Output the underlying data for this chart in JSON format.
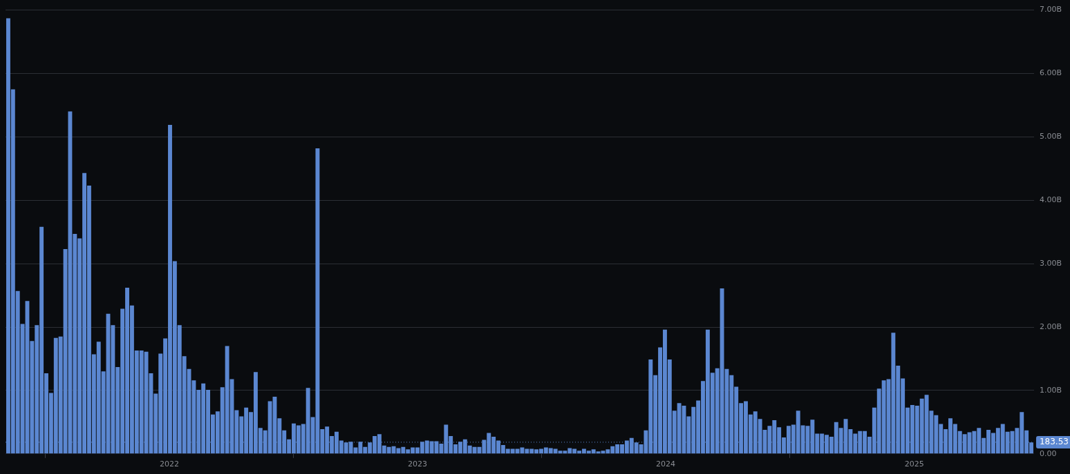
{
  "chart_data": {
    "type": "bar",
    "color": "#5b87d1",
    "x": [
      "2021-05-09",
      "2021-05-16",
      "2021-05-23",
      "2021-05-30",
      "2021-06-06",
      "2021-06-13",
      "2021-06-20",
      "2021-06-27",
      "2021-07-04",
      "2021-07-11",
      "2021-07-18",
      "2021-07-25",
      "2021-08-01",
      "2021-08-08",
      "2021-08-15",
      "2021-08-22",
      "2021-08-29",
      "2021-09-05",
      "2021-09-12",
      "2021-09-19",
      "2021-09-26",
      "2021-10-03",
      "2021-10-10",
      "2021-10-17",
      "2021-10-24",
      "2021-10-31",
      "2021-11-07",
      "2021-11-14",
      "2021-11-21",
      "2021-11-28",
      "2021-12-05",
      "2021-12-12",
      "2021-12-19",
      "2021-12-26",
      "2022-01-02",
      "2022-01-09",
      "2022-01-16",
      "2022-01-23",
      "2022-01-30",
      "2022-02-06",
      "2022-02-13",
      "2022-02-20",
      "2022-02-27",
      "2022-03-06",
      "2022-03-13",
      "2022-03-20",
      "2022-03-27",
      "2022-04-03",
      "2022-04-10",
      "2022-04-17",
      "2022-04-24",
      "2022-05-01",
      "2022-05-08",
      "2022-05-15",
      "2022-05-22",
      "2022-05-29",
      "2022-06-05",
      "2022-06-12",
      "2022-06-19",
      "2022-06-26",
      "2022-07-03",
      "2022-07-10",
      "2022-07-17",
      "2022-07-24",
      "2022-07-31",
      "2022-08-07",
      "2022-08-14",
      "2022-08-21",
      "2022-08-28",
      "2022-09-04",
      "2022-09-11",
      "2022-09-18",
      "2022-09-25",
      "2022-10-02",
      "2022-10-09",
      "2022-10-16",
      "2022-10-23",
      "2022-10-30",
      "2022-11-06",
      "2022-11-13",
      "2022-11-20",
      "2022-11-27",
      "2022-12-04",
      "2022-12-11",
      "2022-12-18",
      "2022-12-25",
      "2023-01-01",
      "2023-01-08",
      "2023-01-15",
      "2023-01-22",
      "2023-01-29",
      "2023-02-05",
      "2023-02-12",
      "2023-02-19",
      "2023-02-26",
      "2023-03-05",
      "2023-03-12",
      "2023-03-19",
      "2023-03-26",
      "2023-04-02",
      "2023-04-09",
      "2023-04-16",
      "2023-04-23",
      "2023-04-30",
      "2023-05-07",
      "2023-05-14",
      "2023-05-21",
      "2023-05-28",
      "2023-06-04",
      "2023-06-11",
      "2023-06-18",
      "2023-06-25",
      "2023-07-02",
      "2023-07-09",
      "2023-07-16",
      "2023-07-23",
      "2023-07-30",
      "2023-08-06",
      "2023-08-13",
      "2023-08-20",
      "2023-08-27",
      "2023-09-03",
      "2023-09-10",
      "2023-09-17",
      "2023-09-24",
      "2023-10-01",
      "2023-10-08",
      "2023-10-15",
      "2023-10-22",
      "2023-10-29",
      "2023-11-05",
      "2023-11-12",
      "2023-11-19",
      "2023-11-26",
      "2023-12-03",
      "2023-12-10",
      "2023-12-17",
      "2023-12-24",
      "2023-12-31",
      "2024-01-07",
      "2024-01-14",
      "2024-01-21",
      "2024-01-28",
      "2024-02-04",
      "2024-02-11",
      "2024-02-18",
      "2024-02-25",
      "2024-03-03",
      "2024-03-10",
      "2024-03-17",
      "2024-03-24",
      "2024-03-31",
      "2024-04-07",
      "2024-04-14",
      "2024-04-21",
      "2024-04-28",
      "2024-05-05",
      "2024-05-12",
      "2024-05-19",
      "2024-05-26",
      "2024-06-02",
      "2024-06-09",
      "2024-06-16",
      "2024-06-23",
      "2024-06-30",
      "2024-07-07",
      "2024-07-14",
      "2024-07-21",
      "2024-07-28",
      "2024-08-04",
      "2024-08-11",
      "2024-08-18",
      "2024-08-25",
      "2024-09-01",
      "2024-09-08",
      "2024-09-15",
      "2024-09-22",
      "2024-09-29",
      "2024-10-06",
      "2024-10-13",
      "2024-10-20",
      "2024-10-27",
      "2024-11-03",
      "2024-11-10",
      "2024-11-17",
      "2024-11-24",
      "2024-12-01",
      "2024-12-08",
      "2024-12-15",
      "2024-12-22",
      "2024-12-29",
      "2025-01-05",
      "2025-01-12",
      "2025-01-19",
      "2025-01-26",
      "2025-02-02",
      "2025-02-09",
      "2025-02-16",
      "2025-02-23",
      "2025-03-02",
      "2025-03-09",
      "2025-03-16",
      "2025-03-23",
      "2025-03-30",
      "2025-04-06",
      "2025-04-13",
      "2025-04-20",
      "2025-04-27",
      "2025-05-04",
      "2025-05-11",
      "2025-05-18",
      "2025-05-25",
      "2025-06-01",
      "2025-06-08",
      "2025-06-15",
      "2025-06-22"
    ],
    "values": [
      6.87,
      5.75,
      2.57,
      2.05,
      2.41,
      1.78,
      2.03,
      3.58,
      1.27,
      0.96,
      1.83,
      1.85,
      3.23,
      5.4,
      3.47,
      3.4,
      4.43,
      4.23,
      1.57,
      1.77,
      1.3,
      2.21,
      2.03,
      1.37,
      2.29,
      2.62,
      2.34,
      1.63,
      1.63,
      1.61,
      1.27,
      0.95,
      1.58,
      1.82,
      5.19,
      3.04,
      2.03,
      1.54,
      1.34,
      1.16,
      1.01,
      1.11,
      1.01,
      0.62,
      0.67,
      1.05,
      1.7,
      1.18,
      0.69,
      0.59,
      0.73,
      0.66,
      1.29,
      0.41,
      0.37,
      0.83,
      0.9,
      0.56,
      0.37,
      0.23,
      0.48,
      0.45,
      0.47,
      1.04,
      0.58,
      4.82,
      0.39,
      0.43,
      0.28,
      0.35,
      0.21,
      0.18,
      0.19,
      0.1,
      0.19,
      0.11,
      0.18,
      0.28,
      0.31,
      0.13,
      0.11,
      0.12,
      0.09,
      0.11,
      0.07,
      0.1,
      0.1,
      0.19,
      0.21,
      0.2,
      0.2,
      0.16,
      0.46,
      0.28,
      0.15,
      0.19,
      0.23,
      0.13,
      0.11,
      0.11,
      0.22,
      0.33,
      0.27,
      0.21,
      0.14,
      0.08,
      0.08,
      0.08,
      0.1,
      0.08,
      0.08,
      0.07,
      0.08,
      0.1,
      0.09,
      0.08,
      0.05,
      0.05,
      0.09,
      0.08,
      0.05,
      0.08,
      0.05,
      0.07,
      0.04,
      0.05,
      0.07,
      0.12,
      0.15,
      0.15,
      0.21,
      0.25,
      0.18,
      0.15,
      0.37,
      1.49,
      1.24,
      1.68,
      1.96,
      1.49,
      0.68,
      0.8,
      0.76,
      0.59,
      0.74,
      0.84,
      1.15,
      1.96,
      1.28,
      1.35,
      2.61,
      1.34,
      1.24,
      1.06,
      0.8,
      0.83,
      0.62,
      0.67,
      0.55,
      0.38,
      0.44,
      0.53,
      0.42,
      0.26,
      0.44,
      0.46,
      0.68,
      0.45,
      0.44,
      0.54,
      0.32,
      0.32,
      0.3,
      0.27,
      0.5,
      0.41,
      0.55,
      0.39,
      0.32,
      0.36,
      0.36,
      0.27,
      0.73,
      1.03,
      1.16,
      1.18,
      1.91,
      1.39,
      1.19,
      0.73,
      0.77,
      0.76,
      0.87,
      0.93,
      0.68,
      0.61,
      0.47,
      0.39,
      0.56,
      0.47,
      0.36,
      0.31,
      0.34,
      0.36,
      0.41,
      0.25,
      0.38,
      0.33,
      0.41,
      0.47,
      0.35,
      0.36,
      0.41,
      0.66,
      0.37,
      0.18
    ],
    "xlim": [
      "2021-05-05",
      "2025-06-26"
    ],
    "xticks": [
      "2022",
      "2023",
      "2024",
      "2025"
    ],
    "ylim": [
      0,
      7
    ],
    "yticks": [
      {
        "value": 0,
        "label": "0.00"
      },
      {
        "value": 1,
        "label": "1.00B"
      },
      {
        "value": 2,
        "label": "2.00B"
      },
      {
        "value": 3,
        "label": "3.00B"
      },
      {
        "value": 4,
        "label": "4.00B"
      },
      {
        "value": 5,
        "label": "5.00B"
      },
      {
        "value": 6,
        "label": "6.00B"
      },
      {
        "value": 7,
        "label": "7.00B"
      }
    ],
    "grid": "y",
    "ref_lines": [
      {
        "axis": "y",
        "value": 0.18353,
        "label": "183.53",
        "color": "#5b87d1",
        "line_style": "dotted"
      }
    ]
  }
}
